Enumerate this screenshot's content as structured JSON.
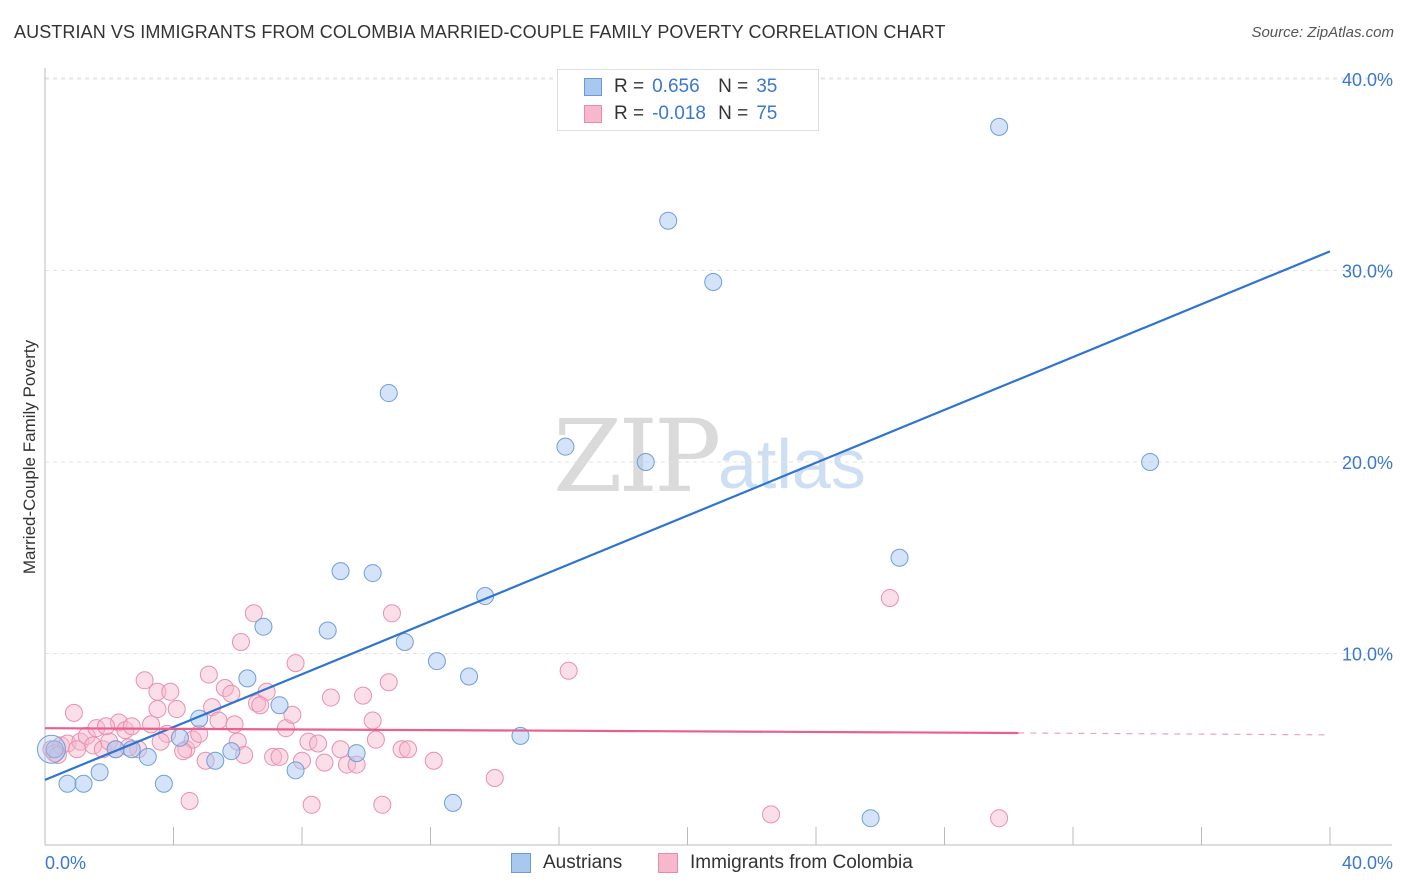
{
  "title": "AUSTRIAN VS IMMIGRANTS FROM COLOMBIA MARRIED-COUPLE FAMILY POVERTY CORRELATION CHART",
  "source": "Source: ZipAtlas.com",
  "watermark": {
    "zip": "ZIP",
    "atlas": "atlas"
  },
  "legend": {
    "r_label": "R =",
    "n_label": "N =",
    "rows": [
      {
        "name": "Austrians",
        "r": "0.656",
        "n": "35",
        "color": "#a9c8ef",
        "edge": "#6a9ad8"
      },
      {
        "name": "Immigrants from Colombia",
        "r": "-0.018",
        "n": "75",
        "color": "#f7b8cc",
        "edge": "#e88aaa"
      }
    ]
  },
  "colors": {
    "blue_fill": "#a9c8ef",
    "blue_edge": "#6f9fdc",
    "blue_line": "#2f74d0",
    "pink_fill": "#f7b8cc",
    "pink_edge": "#ea8fae",
    "pink_line": "#e8608d",
    "axis_text": "#3a78d0"
  },
  "chart_data": {
    "type": "scatter",
    "title": "AUSTRIAN VS IMMIGRANTS FROM COLOMBIA MARRIED-COUPLE FAMILY POVERTY CORRELATION CHART",
    "xlabel": "",
    "ylabel": "Married-Couple Family Poverty",
    "xlim": [
      0,
      40
    ],
    "ylim": [
      0,
      40
    ],
    "x_tick_labels": [
      "0.0%",
      "40.0%"
    ],
    "y_ticks": [
      10,
      20,
      30,
      40
    ],
    "y_tick_labels": [
      "10.0%",
      "20.0%",
      "30.0%",
      "40.0%"
    ],
    "grid": true,
    "series": [
      {
        "name": "Austrians",
        "points": [
          [
            0.3,
            5.0
          ],
          [
            0.7,
            3.2
          ],
          [
            1.2,
            3.2
          ],
          [
            1.7,
            3.8
          ],
          [
            2.2,
            5.0
          ],
          [
            2.7,
            5.0
          ],
          [
            3.2,
            4.6
          ],
          [
            3.7,
            3.2
          ],
          [
            4.2,
            5.6
          ],
          [
            4.8,
            6.6
          ],
          [
            5.3,
            4.4
          ],
          [
            5.8,
            4.9
          ],
          [
            6.3,
            8.7
          ],
          [
            6.8,
            11.4
          ],
          [
            7.3,
            7.3
          ],
          [
            7.8,
            3.9
          ],
          [
            8.8,
            11.2
          ],
          [
            9.2,
            14.3
          ],
          [
            10.2,
            14.2
          ],
          [
            10.7,
            23.6
          ],
          [
            11.2,
            10.6
          ],
          [
            12.2,
            9.6
          ],
          [
            12.7,
            2.2
          ],
          [
            13.2,
            8.8
          ],
          [
            13.7,
            13.0
          ],
          [
            14.8,
            5.7
          ],
          [
            16.2,
            20.8
          ],
          [
            18.7,
            20.0
          ],
          [
            19.4,
            32.6
          ],
          [
            20.8,
            29.4
          ],
          [
            25.7,
            1.4
          ],
          [
            26.6,
            15.0
          ],
          [
            29.7,
            37.5
          ],
          [
            34.4,
            20.0
          ],
          [
            9.7,
            4.8
          ]
        ]
      },
      {
        "name": "Immigrants from Colombia",
        "points": [
          [
            0.2,
            5.0
          ],
          [
            0.3,
            4.8
          ],
          [
            0.5,
            5.2
          ],
          [
            0.7,
            5.3
          ],
          [
            0.9,
            6.9
          ],
          [
            1.1,
            5.4
          ],
          [
            1.3,
            5.7
          ],
          [
            1.5,
            5.2
          ],
          [
            1.6,
            6.1
          ],
          [
            1.8,
            5.0
          ],
          [
            2.0,
            5.4
          ],
          [
            2.2,
            5.0
          ],
          [
            2.3,
            6.4
          ],
          [
            2.5,
            6.0
          ],
          [
            2.7,
            6.2
          ],
          [
            2.9,
            5.0
          ],
          [
            3.1,
            8.6
          ],
          [
            3.3,
            6.3
          ],
          [
            3.5,
            7.1
          ],
          [
            3.5,
            8.0
          ],
          [
            3.8,
            5.8
          ],
          [
            3.9,
            8.0
          ],
          [
            4.1,
            7.1
          ],
          [
            4.4,
            5.0
          ],
          [
            4.5,
            2.3
          ],
          [
            4.6,
            5.5
          ],
          [
            4.8,
            5.8
          ],
          [
            5.0,
            4.4
          ],
          [
            5.1,
            8.9
          ],
          [
            5.2,
            7.2
          ],
          [
            5.4,
            6.5
          ],
          [
            5.6,
            8.2
          ],
          [
            5.8,
            7.9
          ],
          [
            5.9,
            6.3
          ],
          [
            6.0,
            5.4
          ],
          [
            6.1,
            10.6
          ],
          [
            6.2,
            4.7
          ],
          [
            6.5,
            12.1
          ],
          [
            6.6,
            7.4
          ],
          [
            6.9,
            8.0
          ],
          [
            7.1,
            4.6
          ],
          [
            7.3,
            4.6
          ],
          [
            7.5,
            6.1
          ],
          [
            7.7,
            6.8
          ],
          [
            7.8,
            9.5
          ],
          [
            8.0,
            4.4
          ],
          [
            8.2,
            5.4
          ],
          [
            8.3,
            2.1
          ],
          [
            8.5,
            5.3
          ],
          [
            8.7,
            4.3
          ],
          [
            8.9,
            7.7
          ],
          [
            9.2,
            5.0
          ],
          [
            9.4,
            4.2
          ],
          [
            9.7,
            4.2
          ],
          [
            9.9,
            7.8
          ],
          [
            10.2,
            6.5
          ],
          [
            10.3,
            5.5
          ],
          [
            10.5,
            2.1
          ],
          [
            10.7,
            8.5
          ],
          [
            10.8,
            12.1
          ],
          [
            11.1,
            5.0
          ],
          [
            11.3,
            5.0
          ],
          [
            12.1,
            4.4
          ],
          [
            14.0,
            3.5
          ],
          [
            16.3,
            9.1
          ],
          [
            22.6,
            1.6
          ],
          [
            26.3,
            12.9
          ],
          [
            29.7,
            1.4
          ],
          [
            0.4,
            4.7
          ],
          [
            1.0,
            5.0
          ],
          [
            1.9,
            6.2
          ],
          [
            2.6,
            5.1
          ],
          [
            3.6,
            5.4
          ],
          [
            4.3,
            4.9
          ],
          [
            6.7,
            7.3
          ]
        ]
      }
    ],
    "trendlines": [
      {
        "series": "Austrians",
        "x": [
          0,
          40
        ],
        "y": [
          3.4,
          31.0
        ],
        "style": "solid"
      },
      {
        "series": "Immigrants from Colombia",
        "x": [
          0,
          30.3
        ],
        "y": [
          6.1,
          5.85
        ],
        "style": "solid"
      },
      {
        "series": "Immigrants from Colombia",
        "x": [
          30.3,
          40
        ],
        "y": [
          5.85,
          5.75
        ],
        "style": "dashed"
      }
    ]
  }
}
